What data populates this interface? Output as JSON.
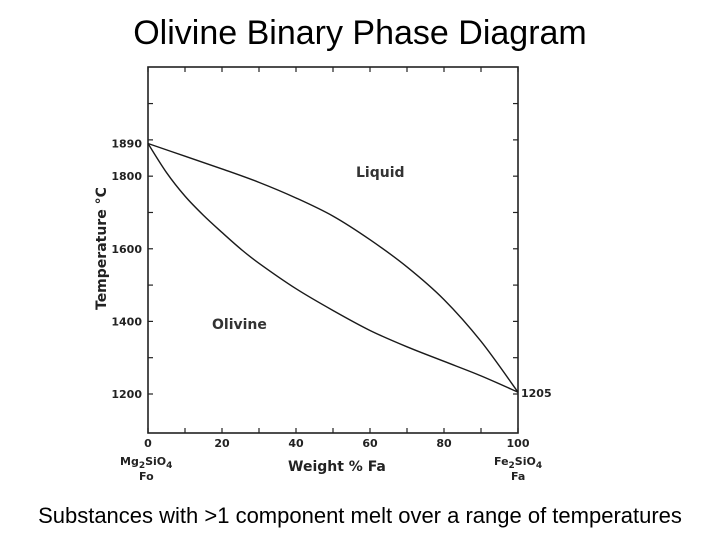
{
  "title": "Olivine Binary Phase Diagram",
  "caption": "Substances with >1 component melt over a range of temperatures",
  "chart_data": {
    "type": "line",
    "ylabel": "Temperature °C",
    "xlabel": "Weight % Fa",
    "xlim": [
      0,
      100
    ],
    "ylim": [
      1150,
      2100
    ],
    "x_ticks": [
      "0",
      "20",
      "40",
      "60",
      "80",
      "100"
    ],
    "y_ticks": [
      "1200",
      "1400",
      "1600",
      "1800",
      "1890"
    ],
    "x_tick_values": [
      0,
      20,
      40,
      60,
      80,
      100
    ],
    "y_tick_values": [
      1200,
      1400,
      1600,
      1800,
      1890
    ],
    "right_label": "1205",
    "end_labels": {
      "left": {
        "formula": "Mg",
        "sub1": "2",
        "mid": "SiO",
        "sub2": "4",
        "abbr": "Fo"
      },
      "right": {
        "formula": "Fe",
        "sub1": "2",
        "mid": "SiO",
        "sub2": "4",
        "abbr": "Fa"
      }
    },
    "regions": {
      "liquid": "Liquid",
      "olivine": "Olivine"
    },
    "series": [
      {
        "curve": "liquidus",
        "x": [
          0,
          10,
          20,
          30,
          40,
          50,
          60,
          70,
          80,
          90,
          100
        ],
        "y": [
          1890,
          1855,
          1820,
          1783,
          1740,
          1690,
          1625,
          1550,
          1460,
          1345,
          1205
        ]
      },
      {
        "curve": "solidus",
        "x": [
          0,
          5,
          10,
          15,
          20,
          25,
          30,
          40,
          50,
          60,
          70,
          80,
          90,
          100
        ],
        "y": [
          1890,
          1810,
          1745,
          1692,
          1645,
          1600,
          1560,
          1490,
          1430,
          1375,
          1330,
          1290,
          1250,
          1205
        ]
      }
    ]
  }
}
